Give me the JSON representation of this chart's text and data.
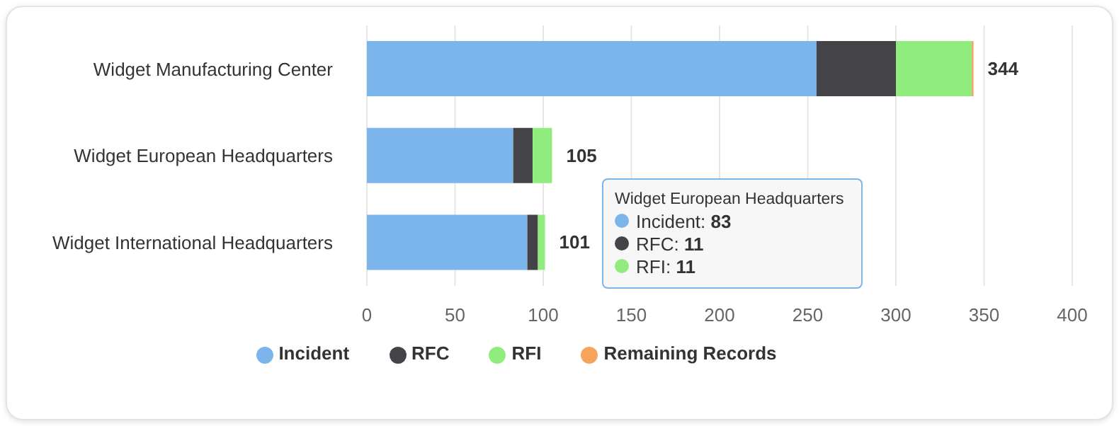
{
  "chart_data": {
    "type": "bar",
    "orientation": "horizontal",
    "stacked": true,
    "categories": [
      "Widget Manufacturing Center",
      "Widget European Headquarters",
      "Widget International Headquarters"
    ],
    "series": [
      {
        "name": "Incident",
        "color": "#7cb5ec",
        "values": [
          255,
          83,
          91
        ]
      },
      {
        "name": "RFC",
        "color": "#434348",
        "values": [
          45,
          11,
          6
        ]
      },
      {
        "name": "RFI",
        "color": "#90ed7d",
        "values": [
          43,
          11,
          4
        ]
      },
      {
        "name": "Remaining Records",
        "color": "#f7a35c",
        "values": [
          1,
          0,
          0
        ]
      }
    ],
    "totals": [
      "344",
      "105",
      "101"
    ],
    "xlim": [
      0,
      400
    ],
    "xticks": [
      0,
      50,
      100,
      150,
      200,
      250,
      300,
      350,
      400
    ],
    "grid": "x",
    "legend": "bottom",
    "annotations": [
      "Widget European Headquarters",
      "Incident: 83",
      "RFC: 11",
      "RFI: 11"
    ]
  }
}
